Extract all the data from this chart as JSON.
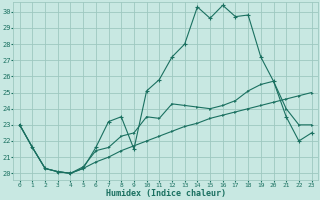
{
  "xlabel": "Humidex (Indice chaleur)",
  "bg_color": "#c8e8e2",
  "line_color": "#1a7060",
  "grid_color": "#9dc8c0",
  "xlim_min": -0.5,
  "xlim_max": 23.5,
  "ylim_min": 19.6,
  "ylim_max": 30.6,
  "xticks": [
    0,
    1,
    2,
    3,
    4,
    5,
    6,
    7,
    8,
    9,
    10,
    11,
    12,
    13,
    14,
    15,
    16,
    17,
    18,
    19,
    20,
    21,
    22,
    23
  ],
  "yticks": [
    20,
    21,
    22,
    23,
    24,
    25,
    26,
    27,
    28,
    29,
    30
  ],
  "line1_x": [
    0,
    1,
    2,
    3,
    4,
    5,
    6,
    7,
    8,
    9,
    10,
    11,
    12,
    13,
    14,
    15,
    16,
    17,
    18,
    19,
    20,
    21,
    22,
    23
  ],
  "line1_y": [
    23.0,
    21.6,
    20.3,
    20.1,
    20.0,
    20.3,
    20.7,
    21.0,
    21.4,
    21.7,
    22.0,
    22.3,
    22.6,
    22.9,
    23.1,
    23.4,
    23.6,
    23.8,
    24.0,
    24.2,
    24.4,
    24.6,
    24.8,
    25.0
  ],
  "line2_x": [
    0,
    1,
    2,
    3,
    4,
    5,
    6,
    7,
    8,
    9,
    10,
    11,
    12,
    13,
    14,
    15,
    16,
    17,
    18,
    19,
    20,
    21,
    22,
    23
  ],
  "line2_y": [
    23.0,
    21.6,
    20.3,
    20.1,
    20.0,
    20.3,
    21.6,
    23.2,
    23.5,
    21.5,
    25.1,
    25.8,
    27.2,
    28.0,
    30.3,
    29.6,
    30.4,
    29.7,
    29.8,
    27.2,
    25.7,
    23.5,
    22.0,
    22.5
  ],
  "line3_x": [
    0,
    1,
    2,
    3,
    4,
    5,
    6,
    7,
    8,
    9,
    10,
    11,
    12,
    13,
    14,
    15,
    16,
    17,
    18,
    19,
    20,
    21,
    22,
    23
  ],
  "line3_y": [
    23.0,
    21.6,
    20.3,
    20.1,
    20.0,
    20.4,
    21.4,
    21.6,
    22.3,
    22.5,
    23.5,
    23.4,
    24.3,
    24.2,
    24.1,
    24.0,
    24.2,
    24.5,
    25.1,
    25.5,
    25.7,
    24.0,
    23.0,
    23.0
  ]
}
